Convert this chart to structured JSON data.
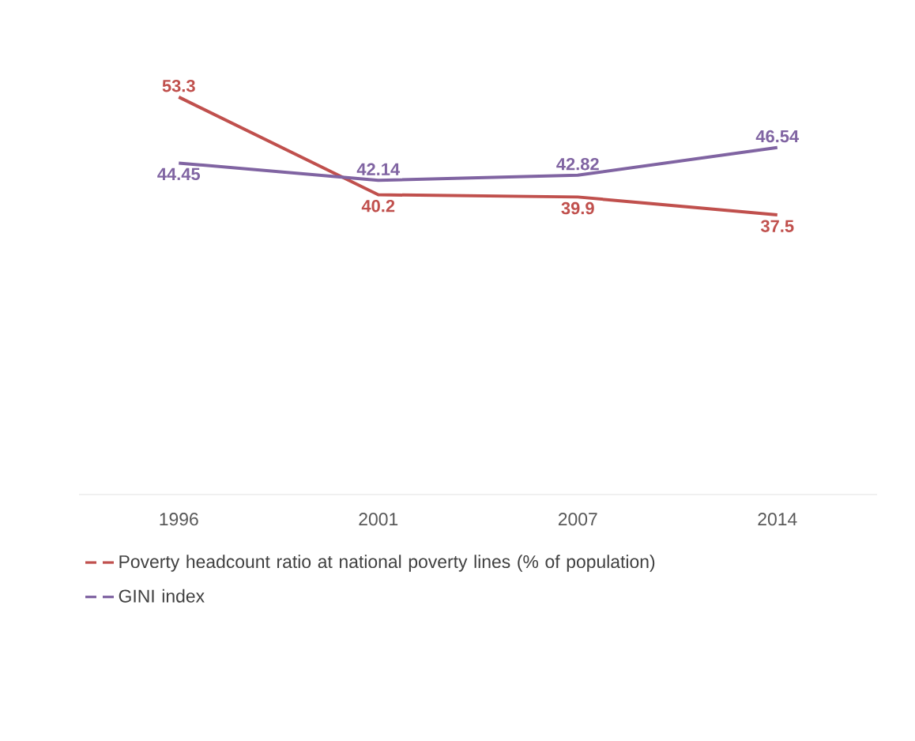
{
  "chart_data": {
    "type": "line",
    "categories": [
      "1996",
      "2001",
      "2007",
      "2014"
    ],
    "series": [
      {
        "name": "Poverty headcount ratio at national poverty lines (% of population)",
        "color": "#c0504d",
        "values": [
          53.3,
          40.2,
          39.9,
          37.5
        ]
      },
      {
        "name": "GINI index",
        "color": "#8064a2",
        "values": [
          44.45,
          42.14,
          42.82,
          46.54
        ]
      }
    ],
    "data_labels": true,
    "legend": "bottom"
  }
}
